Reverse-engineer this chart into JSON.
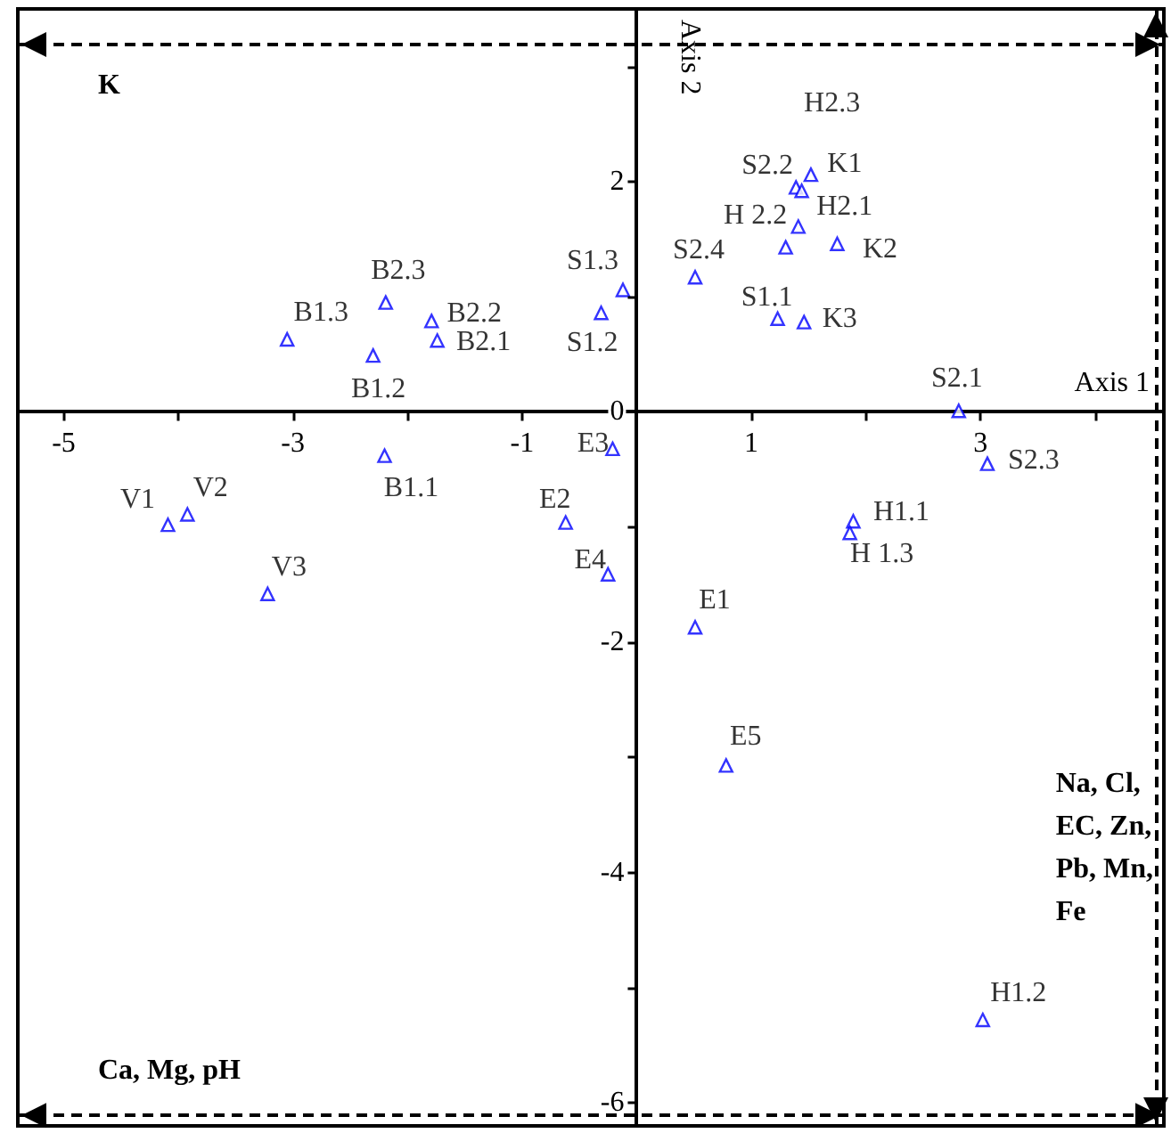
{
  "chart_data": {
    "type": "scatter",
    "xlabel": "Axis 1",
    "ylabel": "Axis 2",
    "xlim": [
      -5.4,
      4.6
    ],
    "ylim": [
      -6.2,
      3.5
    ],
    "xticks": [
      -5,
      {
        "value": -4,
        "label": null
      },
      -3,
      {
        "value": -2,
        "label": null
      },
      -1,
      {
        "value": 0,
        "label": null
      },
      1,
      {
        "value": 2,
        "label": null
      },
      3,
      {
        "value": 4,
        "label": null
      }
    ],
    "yticks": [
      -6,
      {
        "value": -5,
        "label": null
      },
      -4,
      {
        "value": -3,
        "label": null
      },
      -2,
      {
        "value": -1,
        "label": null
      },
      0,
      {
        "value": 1,
        "label": null
      },
      2,
      {
        "value": 3,
        "label": null
      }
    ],
    "grid": false,
    "marker": "triangle",
    "ref_lines": [
      {
        "axis": "y",
        "value": 3.19,
        "color": "#000000",
        "line_style": "dashed"
      },
      {
        "axis": "y",
        "value": -6.11,
        "color": "#000000",
        "line_style": "dashed"
      },
      {
        "axis": "x",
        "value": 4.53,
        "color": "#000000",
        "line_style": "dashed"
      }
    ],
    "series": [
      {
        "color": "#0000ff",
        "x": [
          -3.05,
          -2.19,
          -2.3,
          -1.79,
          -1.74,
          -0.12,
          -0.31,
          0.51,
          1.39,
          1.44,
          1.41,
          1.3,
          1.52,
          1.75,
          1.23,
          1.46,
          2.81,
          3.06,
          -0.21,
          -2.2,
          -4.09,
          -3.92,
          -0.62,
          1.89,
          1.86,
          -3.22,
          -0.25,
          0.51,
          0.78,
          3.02
        ],
        "values": [
          0.63,
          0.95,
          0.49,
          0.79,
          0.62,
          1.06,
          0.86,
          1.17,
          1.95,
          1.92,
          1.61,
          1.43,
          2.06,
          1.46,
          0.81,
          0.78,
          0.01,
          -0.45,
          -0.32,
          -0.38,
          -0.98,
          -0.89,
          -0.96,
          -0.95,
          -1.05,
          -1.58,
          -1.41,
          -1.87,
          -3.07,
          -5.28
        ],
        "value_labels": [
          "B1.3",
          "B2.3",
          "B1.2",
          "B2.2",
          "B2.1",
          "S1.3",
          "S1.2",
          "S2.4",
          "S2.2",
          "H2.3",
          "H2.1",
          "H 2.2",
          "K1",
          "K2",
          "S1.1",
          "K3",
          "S2.1",
          "S2.3",
          "E3",
          "B1.1",
          "V1",
          "V2",
          "E2",
          "H1.1",
          "H 1.3",
          "V3",
          "E4",
          "E1",
          "E5",
          "H1.2"
        ]
      }
    ],
    "annotations": [
      "K",
      "Ca, Mg, pH",
      "Na, Cl, EC, Zn, Pb, Mn, Fe"
    ]
  }
}
